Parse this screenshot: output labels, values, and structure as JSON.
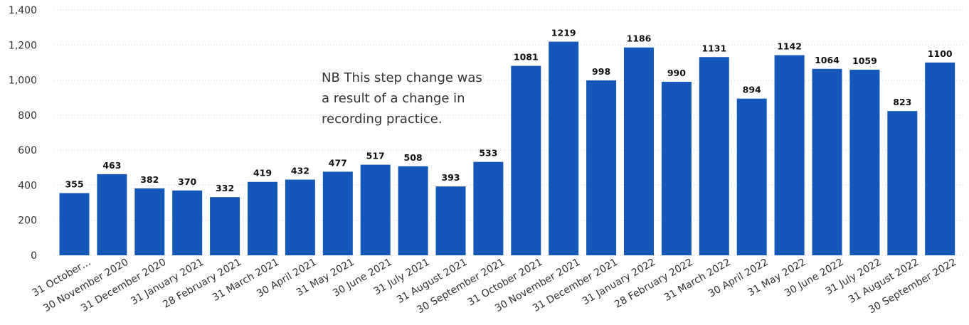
{
  "chart_data": {
    "type": "bar",
    "title": "",
    "xlabel": "",
    "ylabel": "",
    "ylim": [
      0,
      1400
    ],
    "yticks": [
      0,
      200,
      400,
      600,
      800,
      1000,
      1200,
      1400
    ],
    "ytick_labels": [
      "0",
      "200",
      "400",
      "600",
      "800",
      "1,000",
      "1,200",
      "1,400"
    ],
    "grid": true,
    "bar_color": "#1557b8",
    "categories": [
      "31 October…",
      "30 November 2020",
      "31 December 2020",
      "31 January 2021",
      "28 February 2021",
      "31 March 2021",
      "30 April 2021",
      "31 May 2021",
      "30 June 2021",
      "31 July 2021",
      "31 August 2021",
      "30 September 2021",
      "31 October 2021",
      "30 November 2021",
      "31 December 2021",
      "31 January 2022",
      "28 February 2022",
      "31 March 2022",
      "30 April 2022",
      "31 May 2022",
      "30 June 2022",
      "31 July 2022",
      "31 August 2022",
      "30 September 2022"
    ],
    "values": [
      355,
      463,
      382,
      370,
      332,
      419,
      432,
      477,
      517,
      508,
      393,
      533,
      1081,
      1219,
      998,
      1186,
      990,
      1131,
      894,
      1142,
      1064,
      1059,
      823,
      1100
    ],
    "annotation": "NB This step change was a result of a change in recording practice."
  }
}
